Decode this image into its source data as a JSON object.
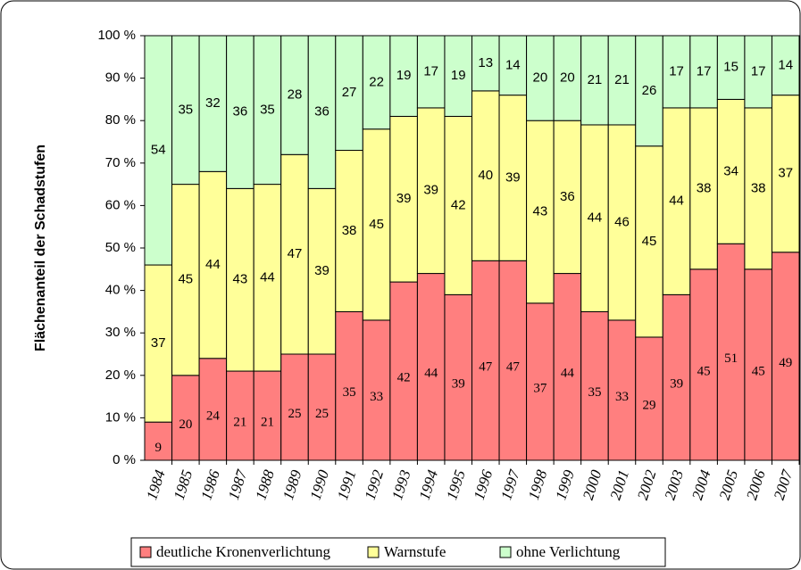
{
  "chart_data": {
    "type": "stacked_bar",
    "y_label": "Flächenanteil der Schadstufen",
    "categories": [
      "1984",
      "1985",
      "1986",
      "1987",
      "1988",
      "1989",
      "1990",
      "1991",
      "1992",
      "1993",
      "1994",
      "1995",
      "1996",
      "1997",
      "1998",
      "1999",
      "2000",
      "2001",
      "2002",
      "2003",
      "2004",
      "2005",
      "2006",
      "2007"
    ],
    "series": [
      {
        "name": "deutliche Kronenverlichtung",
        "color": "#ff7f7f",
        "values": [
          9,
          20,
          24,
          21,
          21,
          25,
          25,
          35,
          33,
          42,
          44,
          39,
          47,
          47,
          37,
          44,
          35,
          33,
          29,
          39,
          45,
          51,
          45,
          49
        ]
      },
      {
        "name": "Warnstufe",
        "color": "#ffff99",
        "values": [
          37,
          45,
          44,
          43,
          44,
          47,
          39,
          38,
          45,
          39,
          39,
          42,
          40,
          39,
          43,
          36,
          44,
          46,
          45,
          44,
          38,
          34,
          38,
          37
        ]
      },
      {
        "name": "ohne Verlichtung",
        "color": "#ccffcc",
        "values": [
          54,
          35,
          32,
          36,
          35,
          28,
          36,
          27,
          22,
          19,
          17,
          19,
          13,
          14,
          20,
          20,
          21,
          21,
          26,
          17,
          17,
          15,
          17,
          14
        ]
      }
    ],
    "ylim": [
      0,
      100
    ],
    "yticks": [
      {
        "value": 0,
        "label": "0 %"
      },
      {
        "value": 10,
        "label": "10 %"
      },
      {
        "value": 20,
        "label": "20 %"
      },
      {
        "value": 30,
        "label": "30 %"
      },
      {
        "value": 40,
        "label": "40 %"
      },
      {
        "value": 50,
        "label": "50 %"
      },
      {
        "value": 60,
        "label": "60 %"
      },
      {
        "value": 70,
        "label": "70 %"
      },
      {
        "value": 80,
        "label": "80 %"
      },
      {
        "value": 90,
        "label": "90 %"
      },
      {
        "value": 100,
        "label": "100 %"
      }
    ],
    "legend": "bottom"
  }
}
